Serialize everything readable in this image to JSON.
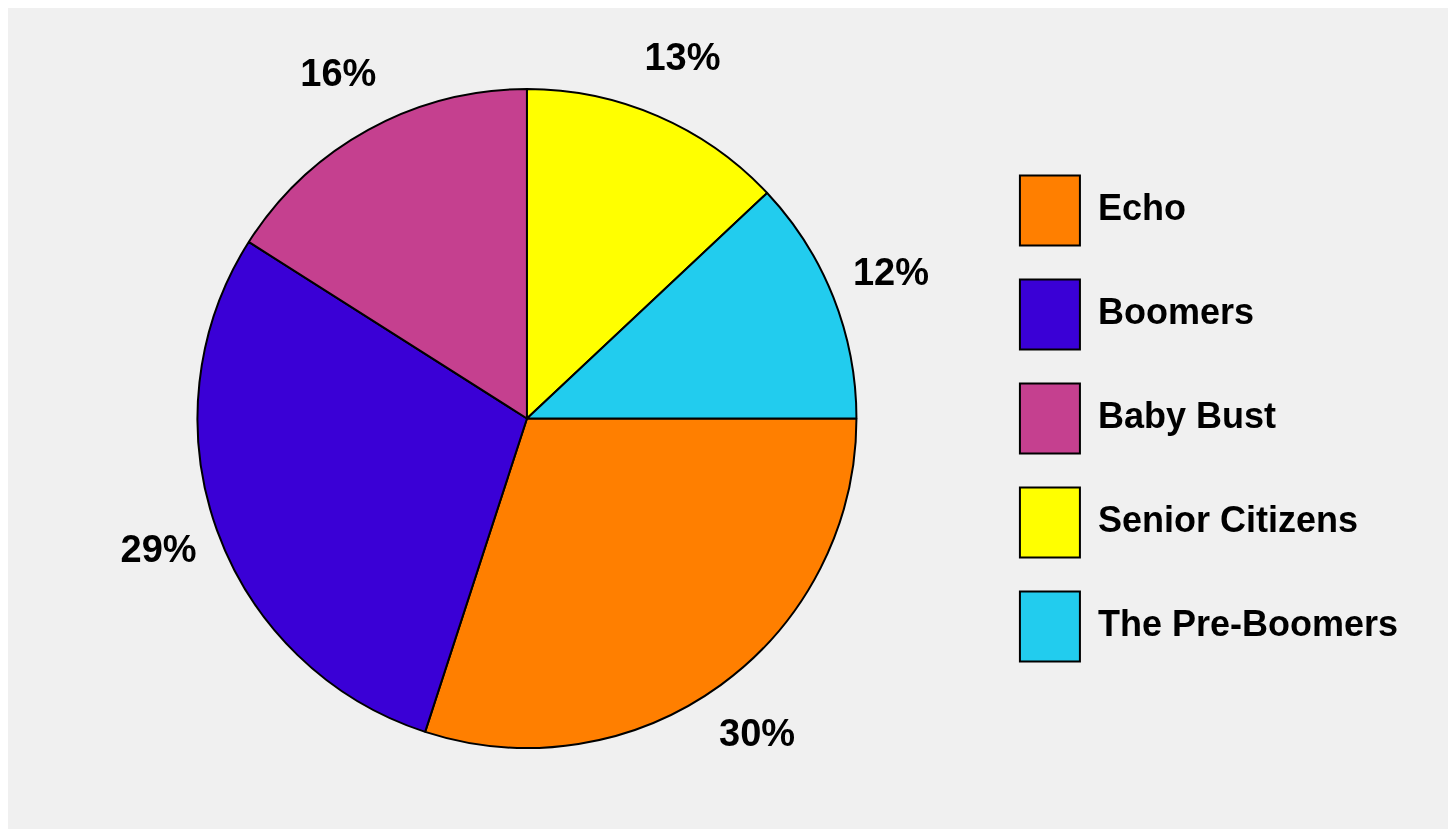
{
  "chart_data": {
    "type": "pie",
    "categories": [
      "Echo",
      "Boomers",
      "Baby Bust",
      "Senior Citizens",
      "The Pre-Boomers"
    ],
    "values": [
      30,
      29,
      16,
      13,
      12
    ],
    "value_labels": [
      "30%",
      "29%",
      "16%",
      "13%",
      "12%"
    ],
    "colors": [
      "#ff7f00",
      "#3a00d6",
      "#c5408f",
      "#ffff00",
      "#22ccee"
    ],
    "legend": "right"
  }
}
